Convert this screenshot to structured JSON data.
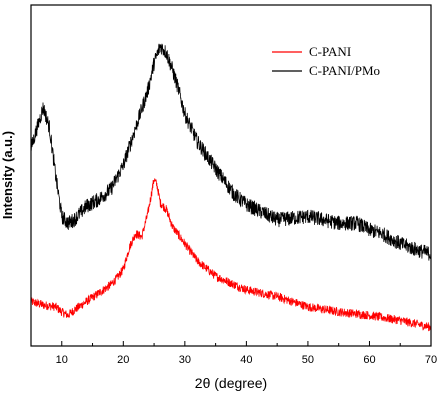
{
  "chart_data": {
    "type": "line",
    "title": "",
    "xlabel": "2θ (degree)",
    "ylabel": "Intensity (a.u.)",
    "xlim": [
      5,
      70
    ],
    "ylim": [
      0,
      100
    ],
    "xticks": [
      10,
      20,
      30,
      40,
      50,
      60,
      70
    ],
    "yticks_shown": false,
    "grid": false,
    "legend_position": "top-right",
    "series": [
      {
        "name": "C-PANI",
        "color": "#ff0000",
        "noise": 1.3,
        "x": [
          5,
          7,
          9,
          10,
          11,
          12,
          14,
          16,
          18,
          19,
          20,
          21,
          22,
          23,
          24,
          25,
          25.5,
          26,
          27,
          28,
          30,
          32,
          35,
          38,
          40,
          45,
          50,
          55,
          60,
          65,
          70
        ],
        "y": [
          13,
          12,
          11.5,
          10,
          9,
          10.5,
          13,
          15.5,
          18,
          20,
          22.5,
          29,
          33,
          32,
          39,
          49,
          47,
          42,
          40,
          35,
          30,
          25,
          20.5,
          18,
          16.5,
          14.5,
          11.5,
          10,
          9,
          7.5,
          5.5
        ]
      },
      {
        "name": "C-PANI/PMo",
        "color": "#000000",
        "noise": 2.2,
        "x": [
          5,
          6,
          7,
          8,
          9,
          10,
          11,
          12,
          14,
          16,
          18,
          20,
          22,
          24,
          25,
          26,
          27,
          28,
          29,
          30,
          32,
          35,
          38,
          40,
          45,
          50,
          55,
          58,
          60,
          62,
          65,
          68,
          70
        ],
        "y": [
          58,
          64,
          70,
          64,
          50,
          38,
          36,
          37,
          41,
          43,
          46,
          53,
          64,
          75,
          83,
          88,
          86,
          81,
          75,
          68,
          60,
          52,
          44.5,
          41.5,
          37,
          38,
          36,
          36,
          34,
          33,
          30,
          28,
          27
        ]
      }
    ]
  }
}
